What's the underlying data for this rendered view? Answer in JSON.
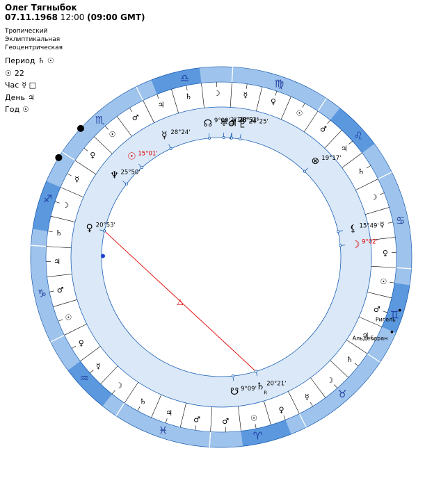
{
  "header": {
    "name": "Олег Тягныбок",
    "date": "07.11.1968",
    "time": "12:00",
    "gmt": "(09:00 GMT)"
  },
  "settings": [
    "Тропический",
    "Эклиптикальная",
    "Геоцентрическая"
  ],
  "periods": [
    {
      "label": "Период",
      "symbols": "♄ ☉"
    },
    {
      "label": "☉",
      "symbols": "22"
    },
    {
      "label": "Час",
      "symbols": "☿ □"
    },
    {
      "label": "День",
      "symbols": "♃"
    },
    {
      "label": "Год",
      "symbols": "☉"
    }
  ],
  "zodiac_signs": [
    {
      "glyph": "♈",
      "name": "aries"
    },
    {
      "glyph": "♉",
      "name": "taurus"
    },
    {
      "glyph": "♊",
      "name": "gemini"
    },
    {
      "glyph": "♋",
      "name": "cancer"
    },
    {
      "glyph": "♌",
      "name": "leo"
    },
    {
      "glyph": "♍",
      "name": "virgo"
    },
    {
      "glyph": "♎",
      "name": "libra"
    },
    {
      "glyph": "♏",
      "name": "scorpio"
    },
    {
      "glyph": "♐",
      "name": "sagittarius"
    },
    {
      "glyph": "♑",
      "name": "capricorn"
    },
    {
      "glyph": "♒",
      "name": "aquarius"
    },
    {
      "glyph": "♓",
      "name": "pisces"
    }
  ],
  "decan_rulers": [
    "♂",
    "☉",
    "♀",
    "☿",
    "☽",
    "♄",
    "♃",
    "♂",
    "☉",
    "♀",
    "☿",
    "☽",
    "♄",
    "♃",
    "♂",
    "☉",
    "♀",
    "☿",
    "☽",
    "♄",
    "♃",
    "♂",
    "☉",
    "♀",
    "☿",
    "☽",
    "♄",
    "♃",
    "♂",
    "☉",
    "♀",
    "☿",
    "☽",
    "♄",
    "♃",
    "♂"
  ],
  "ascendant_longitude": 273.5,
  "planets": [
    {
      "id": "sun",
      "glyph": "☉",
      "label": "15°01'",
      "lon": 225.02,
      "color": "#e00000"
    },
    {
      "id": "venus",
      "glyph": "♀",
      "label": "20°53'",
      "lon": 260.88,
      "color": "#000000"
    },
    {
      "id": "neptune",
      "glyph": "♆",
      "label": "25°50'",
      "lon": 235.83,
      "color": "#000000"
    },
    {
      "id": "mercury",
      "glyph": "☿",
      "label": "28°24'",
      "lon": 208.4,
      "color": "#000000"
    },
    {
      "id": "node",
      "glyph": "☊",
      "label": "9°09'",
      "lon": 189.15,
      "color": "#000000"
    },
    {
      "id": "mars",
      "glyph": "♂",
      "label": "28°51'",
      "lon": 178.85,
      "color": "#000000"
    },
    {
      "id": "jupiter",
      "glyph": "♃",
      "label": "28°31'",
      "lon": 178.52,
      "color": "#000000"
    },
    {
      "id": "uranus",
      "glyph": "♅",
      "label": "2°19'",
      "lon": 182.32,
      "color": "#000000"
    },
    {
      "id": "pluto",
      "glyph": "♇",
      "label": "24°25'",
      "lon": 174.42,
      "color": "#000000"
    },
    {
      "id": "moon",
      "glyph": "☽",
      "label": "9°02'",
      "lon": 99.03,
      "color": "#e00000"
    },
    {
      "id": "lilith",
      "glyph": "⚸",
      "label": "15°49'",
      "lon": 105.82,
      "color": "#000000"
    },
    {
      "id": "fortune",
      "glyph": "⊗",
      "label": "19°17'",
      "lon": 139.28,
      "color": "#000000"
    },
    {
      "id": "snode",
      "glyph": "☋",
      "label": "9°09'",
      "lon": 9.15,
      "color": "#000000"
    },
    {
      "id": "saturn",
      "glyph": "♄",
      "label": "20°21'",
      "lon": 20.35,
      "color": "#000000"
    }
  ],
  "retrograde_mark": "R",
  "stars": [
    {
      "name": "Альдебаран",
      "lon": 69.8
    },
    {
      "name": "Ригель",
      "lon": 76.9
    }
  ],
  "aspect_marker": "△",
  "colors": {
    "ring_outer": "#9ec3ec",
    "ring_outer_dark": "#5b98de",
    "ring_band": "#dbe8f8",
    "line": "#1a5fb4",
    "aspect": "#e00000",
    "glyph": "#1e3fa0"
  }
}
